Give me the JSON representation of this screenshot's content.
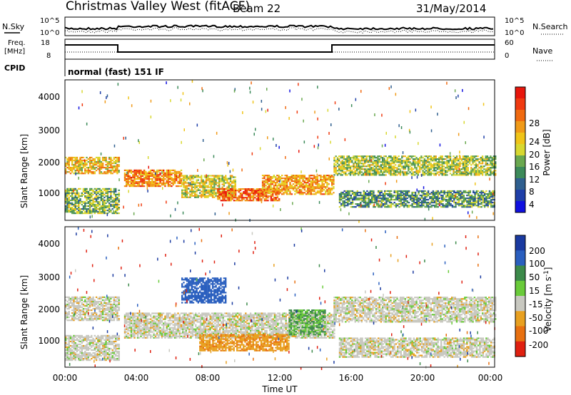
{
  "header": {
    "station": "Christmas Valley West (fitACF)",
    "beam": "Beam 22",
    "date": "31/May/2014"
  },
  "status": {
    "left_label_top": "N.Sky",
    "right_label_top": "N.Search",
    "top_ticks_left": [
      "10^5",
      "10^0"
    ],
    "top_ticks_right": [
      "10^5",
      "10^0"
    ],
    "freq_label_line1": "Freq.",
    "freq_label_line2": "[MHz]",
    "freq_ticks": [
      "18",
      "8"
    ],
    "nave_label": "Nave",
    "nave_ticks": [
      "60",
      "0"
    ],
    "cpid_label": "CPID",
    "cpid_value": "normal (fast) 151 IF"
  },
  "panels": {
    "y_label": "Slant Range [km]",
    "y_ticks": [
      "4000",
      "3000",
      "2000",
      "1000"
    ],
    "x_ticks": [
      "00:00",
      "04:00",
      "08:00",
      "12:00",
      "16:00",
      "20:00",
      "00:00"
    ],
    "x_label": "Time UT"
  },
  "power_scale": {
    "label": "Power [dB]",
    "ticks": [
      "28",
      "24",
      "20",
      "16",
      "12",
      "8",
      "4"
    ],
    "colors": [
      "#e8160c",
      "#f03a10",
      "#f06a10",
      "#f09a18",
      "#f0c418",
      "#d8d830",
      "#6aa84f",
      "#3c8a5a",
      "#2f5f8f",
      "#1f3fa8",
      "#1010e0"
    ]
  },
  "velocity_scale": {
    "label": "Velocity [m s",
    "label_sup": "-1",
    "label_end": "]",
    "ticks": [
      "200",
      "100",
      "50",
      "15",
      "-15",
      "-50",
      "-100",
      "-200"
    ],
    "colors": [
      "#1a3aa0",
      "#2a5fbf",
      "#3c8a4a",
      "#6acb3a",
      "#c8c8c0",
      "#e8a020",
      "#e87010",
      "#e02010"
    ]
  },
  "chart_data": [
    {
      "type": "heatmap",
      "title": "Power",
      "xlabel": "Time UT",
      "ylabel": "Slant Range [km]",
      "xlim": [
        "00:00",
        "24:00"
      ],
      "ylim": [
        200,
        4600
      ],
      "colorbar": {
        "label": "Power [dB]",
        "range": [
          3,
          31
        ]
      },
      "bands": [
        {
          "t0": 0.0,
          "t1": 3.0,
          "r0": 1650,
          "r1": 2150,
          "v": 20
        },
        {
          "t0": 0.0,
          "t1": 3.0,
          "r0": 400,
          "r1": 1200,
          "v": 14
        },
        {
          "t0": 3.3,
          "t1": 6.5,
          "r0": 1250,
          "r1": 1750,
          "v": 24
        },
        {
          "t0": 6.5,
          "t1": 9.5,
          "r0": 900,
          "r1": 1600,
          "v": 18
        },
        {
          "t0": 8.5,
          "t1": 12.0,
          "r0": 800,
          "r1": 1200,
          "v": 26
        },
        {
          "t0": 11.0,
          "t1": 15.0,
          "r0": 1000,
          "r1": 1600,
          "v": 22
        },
        {
          "t0": 15.0,
          "t1": 24.0,
          "r0": 1600,
          "r1": 2200,
          "v": 16
        },
        {
          "t0": 15.3,
          "t1": 24.0,
          "r0": 600,
          "r1": 1100,
          "v": 12
        }
      ]
    },
    {
      "type": "heatmap",
      "title": "Velocity",
      "xlabel": "Time UT",
      "ylabel": "Slant Range [km]",
      "xlim": [
        "00:00",
        "24:00"
      ],
      "ylim": [
        200,
        4600
      ],
      "colorbar": {
        "label": "Velocity [m s-1]",
        "range": [
          -250,
          250
        ]
      },
      "bands": [
        {
          "t0": 0.0,
          "t1": 3.0,
          "r0": 1650,
          "r1": 2400,
          "v": 0
        },
        {
          "t0": 0.0,
          "t1": 3.0,
          "r0": 400,
          "r1": 1200,
          "v": 0
        },
        {
          "t0": 3.3,
          "t1": 15.0,
          "r0": 1100,
          "r1": 1900,
          "v": 0
        },
        {
          "t0": 7.5,
          "t1": 12.5,
          "r0": 700,
          "r1": 1200,
          "v": -40
        },
        {
          "t0": 6.5,
          "t1": 9.0,
          "r0": 2200,
          "r1": 3000,
          "v": 120
        },
        {
          "t0": 12.5,
          "t1": 14.5,
          "r0": 1200,
          "r1": 2000,
          "v": 30
        },
        {
          "t0": 15.0,
          "t1": 24.0,
          "r0": 1600,
          "r1": 2400,
          "v": 0
        },
        {
          "t0": 15.3,
          "t1": 24.0,
          "r0": 500,
          "r1": 1100,
          "v": 0
        }
      ]
    }
  ]
}
